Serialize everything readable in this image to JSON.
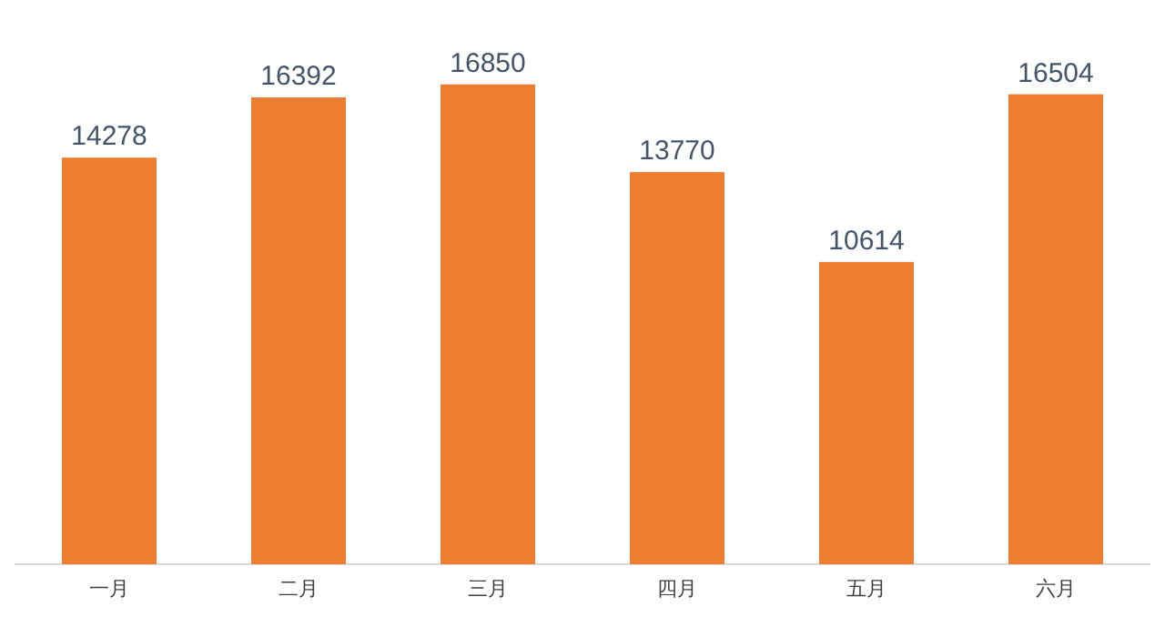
{
  "chart_data": {
    "type": "bar",
    "categories": [
      "一月",
      "二月",
      "三月",
      "四月",
      "五月",
      "六月"
    ],
    "values": [
      14278,
      16392,
      16850,
      13770,
      10614,
      16504
    ],
    "color": "#ed7d31",
    "data_labels": true,
    "tick_labels": "x"
  }
}
